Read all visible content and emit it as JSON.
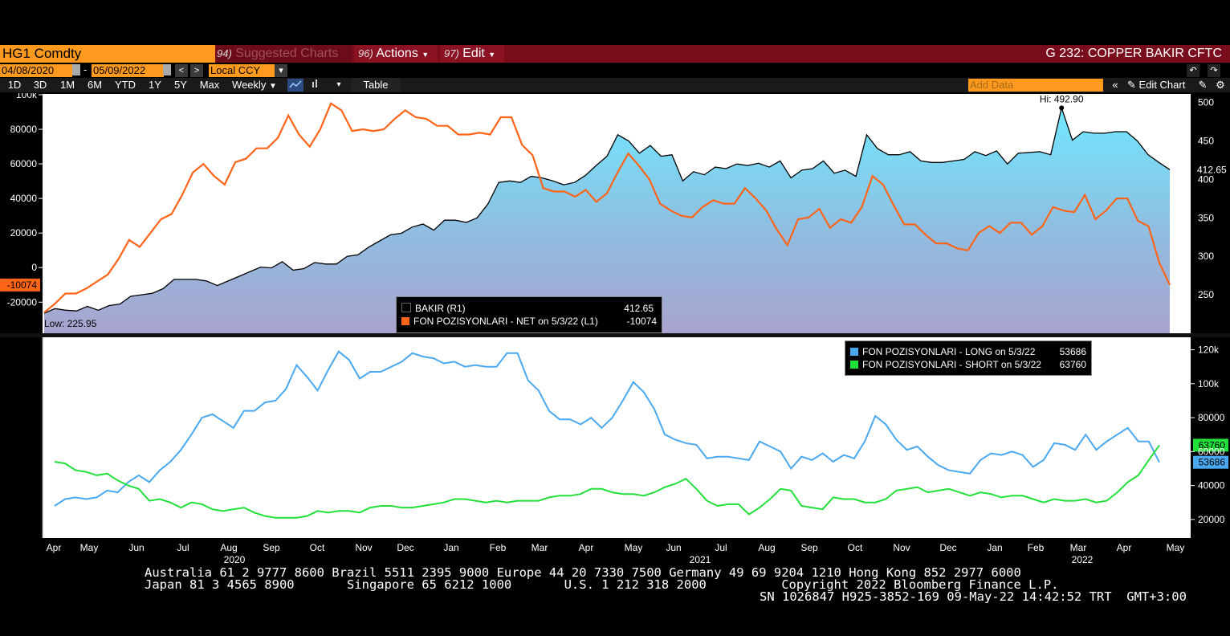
{
  "toolbar": {
    "ticker": "HG1 Comdty",
    "suggested_num": "94)",
    "suggested_label": "Suggested Charts",
    "actions_num": "96)",
    "actions_label": "Actions",
    "edit_num": "97)",
    "edit_label": "Edit",
    "window_title": "G 232: COPPER BAKIR CFTC",
    "start_date": "04/08/2020",
    "end_date": "05/09/2022",
    "date_sep": "-",
    "currency": "Local CCY",
    "ranges": [
      "1D",
      "3D",
      "1M",
      "6M",
      "YTD",
      "1Y",
      "5Y",
      "Max"
    ],
    "frequency": "Weekly",
    "table_label": "Table",
    "add_data_placeholder": "Add Data",
    "edit_chart_label": "Edit Chart"
  },
  "chart_data": [
    {
      "type": "area+line",
      "panel": "upper",
      "x_labels": [
        "Apr",
        "May",
        "Jun",
        "Jul",
        "Aug",
        "Sep",
        "Oct",
        "Nov",
        "Dec",
        "Jan",
        "Feb",
        "Mar",
        "Apr",
        "May",
        "Jun",
        "Jul",
        "Aug",
        "Sep",
        "Oct",
        "Nov",
        "Dec",
        "Jan",
        "Feb",
        "Mar",
        "Apr",
        "May"
      ],
      "year_labels": [
        "2020",
        "2021",
        "2022"
      ],
      "left_axis": {
        "ticks": [
          "100k",
          "80000",
          "60000",
          "40000",
          "20000",
          "0",
          "-20000"
        ],
        "range": [
          -38000,
          100000
        ]
      },
      "right_axis": {
        "ticks": [
          "500",
          "450",
          "400",
          "350",
          "300",
          "250"
        ],
        "range": [
          200,
          510
        ]
      },
      "series": [
        {
          "name": "BAKIR (R1)",
          "axis": "right",
          "color": "#000000",
          "last_value": "412.65",
          "high_label": "Hi: 492.90",
          "low_label": "Low: 225.95",
          "values": [
            225.95,
            232,
            230,
            229,
            235,
            230,
            236,
            238,
            248,
            250,
            252,
            258,
            270,
            270,
            270,
            268,
            262,
            268,
            274,
            280,
            286,
            285,
            293,
            282,
            284,
            292,
            290,
            290,
            300,
            302,
            312,
            320,
            328,
            330,
            338,
            342,
            334,
            347,
            347,
            344,
            350,
            368,
            396,
            398,
            396,
            404,
            402,
            398,
            393,
            396,
            405,
            418,
            430,
            458,
            450,
            434,
            444,
            430,
            432,
            398,
            410,
            406,
            416,
            414,
            420,
            418,
            421,
            416,
            424,
            402,
            412,
            414,
            424,
            408,
            412,
            404,
            458,
            440,
            432,
            432,
            436,
            424,
            422,
            422,
            424,
            426,
            436,
            431,
            437,
            420,
            434,
            435,
            436,
            432,
            492.9,
            451,
            462,
            460,
            460,
            462,
            462,
            450,
            432,
            422,
            412.65
          ]
        },
        {
          "name": "FON POZISYONLARI - NET on 5/3/22 (L1)",
          "axis": "left",
          "color": "#ff6418",
          "last_value": "-10074",
          "values": [
            -26000,
            -21000,
            -15000,
            -15000,
            -12000,
            -8000,
            -4000,
            5000,
            16000,
            12000,
            20000,
            28000,
            31000,
            42000,
            55000,
            60000,
            53000,
            48000,
            61000,
            63000,
            69000,
            69000,
            75000,
            88000,
            77000,
            70000,
            80000,
            95000,
            91000,
            79000,
            80000,
            79000,
            80000,
            86000,
            91000,
            87000,
            86000,
            82000,
            82000,
            77000,
            77000,
            78000,
            77000,
            87000,
            87000,
            71000,
            65000,
            46000,
            44000,
            44000,
            41000,
            45000,
            38000,
            43000,
            55000,
            66000,
            59000,
            51000,
            37000,
            33000,
            30000,
            29000,
            35000,
            39000,
            37000,
            37000,
            46000,
            40000,
            33000,
            22000,
            13000,
            28000,
            29000,
            34000,
            23000,
            28000,
            26000,
            35000,
            53000,
            48000,
            36000,
            25000,
            25000,
            19000,
            14000,
            14000,
            11000,
            10000,
            20000,
            24000,
            20000,
            26000,
            26000,
            19000,
            24000,
            35000,
            33000,
            32000,
            42000,
            28000,
            33000,
            40000,
            40000,
            27000,
            24000,
            3000,
            -10074
          ]
        }
      ]
    },
    {
      "type": "line",
      "panel": "lower",
      "right_axis": {
        "ticks": [
          "120k",
          "100k",
          "80000",
          "60000",
          "40000",
          "20000"
        ],
        "range": [
          10000,
          125000
        ]
      },
      "series": [
        {
          "name": "FON POZISYONLARI - LONG on 5/3/22",
          "color": "#4aa8f0",
          "last_value": "53686",
          "values": [
            28000,
            32000,
            33000,
            32000,
            33000,
            37000,
            36000,
            42000,
            46000,
            42000,
            49000,
            54000,
            61000,
            70000,
            80000,
            82000,
            78000,
            74000,
            84000,
            84000,
            89000,
            90000,
            97000,
            111000,
            104000,
            96000,
            108000,
            119000,
            114000,
            103000,
            107000,
            107000,
            110000,
            113000,
            118000,
            116000,
            115000,
            112000,
            113000,
            110000,
            111000,
            110000,
            110000,
            118000,
            118000,
            102000,
            96000,
            84000,
            79000,
            79000,
            76000,
            80000,
            74000,
            80000,
            90000,
            101000,
            95000,
            85000,
            70000,
            67000,
            65000,
            64000,
            56000,
            57000,
            57000,
            56000,
            55000,
            66000,
            63000,
            60000,
            50000,
            57000,
            55000,
            59000,
            54000,
            58000,
            56000,
            66000,
            81000,
            76000,
            67000,
            61000,
            63000,
            57000,
            52000,
            49000,
            48000,
            47000,
            55000,
            59000,
            58000,
            60000,
            58000,
            51000,
            55000,
            65000,
            64000,
            61000,
            70000,
            61000,
            66000,
            70000,
            74000,
            66000,
            66000,
            53686
          ]
        },
        {
          "name": "FON POZISYONLARI - SHORT on 5/3/22",
          "color": "#22e03a",
          "last_value": "63760",
          "values": [
            54000,
            53000,
            49000,
            48000,
            46000,
            47000,
            43000,
            40000,
            38000,
            31000,
            32000,
            30000,
            27000,
            30000,
            29000,
            26000,
            25000,
            26000,
            27000,
            24000,
            22000,
            21000,
            21000,
            21000,
            22000,
            25000,
            24000,
            25000,
            25000,
            24000,
            27000,
            28000,
            28000,
            27000,
            27000,
            28000,
            29000,
            30000,
            32000,
            32000,
            31000,
            30000,
            31000,
            30000,
            31000,
            31000,
            31000,
            33000,
            34000,
            34000,
            35000,
            38000,
            38000,
            36000,
            35000,
            35000,
            34000,
            36000,
            39000,
            41000,
            44000,
            38000,
            31000,
            28000,
            29000,
            29000,
            23000,
            27000,
            32000,
            38000,
            37000,
            28000,
            27000,
            26000,
            33000,
            32000,
            32000,
            30000,
            30000,
            32000,
            37000,
            38000,
            39000,
            36000,
            37000,
            38000,
            36000,
            34000,
            36000,
            35000,
            33000,
            34000,
            34000,
            32000,
            30000,
            32000,
            31000,
            31000,
            32000,
            30000,
            31000,
            36000,
            42000,
            46000,
            55000,
            63760
          ]
        }
      ]
    }
  ],
  "footer": {
    "line1": "Australia 61 2 9777 8600 Brazil 5511 2395 9000 Europe 44 20 7330 7500 Germany 49 69 9204 1210 Hong Kong 852 2977 6000",
    "line2": "Japan 81 3 4565 8900       Singapore 65 6212 1000       U.S. 1 212 318 2000          Copyright 2022 Bloomberg Finance L.P.",
    "line3": "SN 1026847 H925-3852-169 09-May-22 14:42:52 TRT  GMT+3:00"
  }
}
